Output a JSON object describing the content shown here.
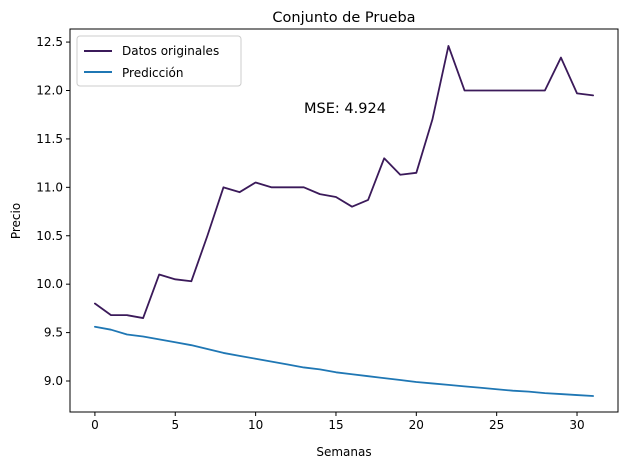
{
  "chart_data": {
    "type": "line",
    "title": "Conjunto de Prueba",
    "xlabel": "Semanas",
    "ylabel": "Precio",
    "xlim": [
      -1.55,
      32.55
    ],
    "ylim": [
      8.68,
      12.635
    ],
    "xticks": [
      0,
      5,
      10,
      15,
      20,
      25,
      30
    ],
    "yticks": [
      9.0,
      9.5,
      10.0,
      10.5,
      11.0,
      11.5,
      12.0,
      12.5
    ],
    "xtick_labels": [
      "0",
      "5",
      "10",
      "15",
      "20",
      "25",
      "30"
    ],
    "ytick_labels": [
      "9.0",
      "9.5",
      "10.0",
      "10.5",
      "11.0",
      "11.5",
      "12.0",
      "12.5"
    ],
    "grid": false,
    "legend_position": "top-left",
    "annotation": "MSE: 4.924",
    "series": [
      {
        "name": "Datos originales",
        "color": "#3b1a5a",
        "x": [
          0,
          1,
          2,
          3,
          4,
          5,
          6,
          7,
          8,
          9,
          10,
          11,
          12,
          13,
          14,
          15,
          16,
          17,
          18,
          19,
          20,
          21,
          22,
          23,
          24,
          25,
          26,
          27,
          28,
          29,
          30,
          31
        ],
        "values": [
          9.8,
          9.68,
          9.68,
          9.65,
          10.1,
          10.05,
          10.03,
          10.5,
          11.0,
          10.95,
          11.05,
          11.0,
          11.0,
          11.0,
          10.93,
          10.9,
          10.8,
          10.87,
          11.3,
          11.13,
          11.15,
          11.7,
          12.46,
          12.0,
          12.0,
          12.0,
          12.0,
          12.0,
          12.0,
          12.34,
          11.97,
          11.95
        ]
      },
      {
        "name": "Predicción",
        "color": "#1f77b4",
        "x": [
          0,
          1,
          2,
          3,
          4,
          5,
          6,
          7,
          8,
          9,
          10,
          11,
          12,
          13,
          14,
          15,
          16,
          17,
          18,
          19,
          20,
          21,
          22,
          23,
          24,
          25,
          26,
          27,
          28,
          29,
          30,
          31
        ],
        "values": [
          9.56,
          9.53,
          9.48,
          9.46,
          9.43,
          9.4,
          9.37,
          9.33,
          9.29,
          9.26,
          9.23,
          9.2,
          9.17,
          9.14,
          9.12,
          9.09,
          9.07,
          9.05,
          9.03,
          9.01,
          8.99,
          8.975,
          8.96,
          8.945,
          8.93,
          8.915,
          8.9,
          8.89,
          8.875,
          8.865,
          8.855,
          8.845
        ]
      }
    ]
  }
}
